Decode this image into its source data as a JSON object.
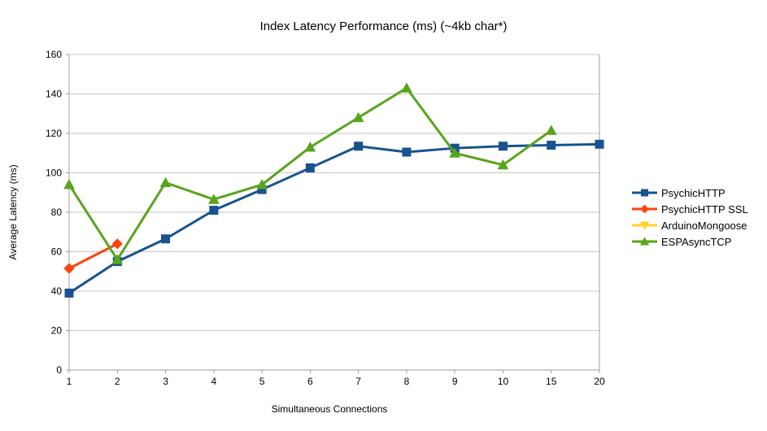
{
  "chart_data": {
    "type": "line",
    "title": "Index Latency Performance (ms) (~4kb char*)",
    "xlabel": "Simultaneous Connections",
    "ylabel": "Average Latency (ms)",
    "categories": [
      "1",
      "2",
      "3",
      "4",
      "5",
      "6",
      "7",
      "8",
      "9",
      "10",
      "15",
      "20"
    ],
    "ylim": [
      0,
      160
    ],
    "ytick_step": 20,
    "grid": "horizontal",
    "legend_position": "right",
    "series": [
      {
        "name": "PsychicHTTP",
        "color": "#17538F",
        "marker": "square",
        "values": [
          39,
          55,
          66.5,
          81,
          91.5,
          102.5,
          113.5,
          110.5,
          112.5,
          113.5,
          114,
          114.5
        ]
      },
      {
        "name": "PsychicHTTP SSL",
        "color": "#FF420E",
        "marker": "diamond",
        "values": [
          51.5,
          64,
          null,
          null,
          null,
          null,
          null,
          null,
          null,
          null,
          null,
          null
        ]
      },
      {
        "name": "ArduinoMongoose",
        "color": "#FFD320",
        "marker": "triangle-down",
        "values": [
          null,
          null,
          null,
          null,
          null,
          null,
          null,
          null,
          null,
          null,
          null,
          null
        ]
      },
      {
        "name": "ESPAsyncTCP",
        "color": "#58A41D",
        "marker": "triangle-up",
        "values": [
          94,
          56,
          95,
          86.5,
          94,
          113,
          128,
          143,
          110,
          104,
          121.5,
          null
        ]
      }
    ]
  },
  "colors": {
    "background": "#ffffff",
    "gridline": "#c6c6c6",
    "axis": "#9e9e9e",
    "text": "#000000"
  }
}
